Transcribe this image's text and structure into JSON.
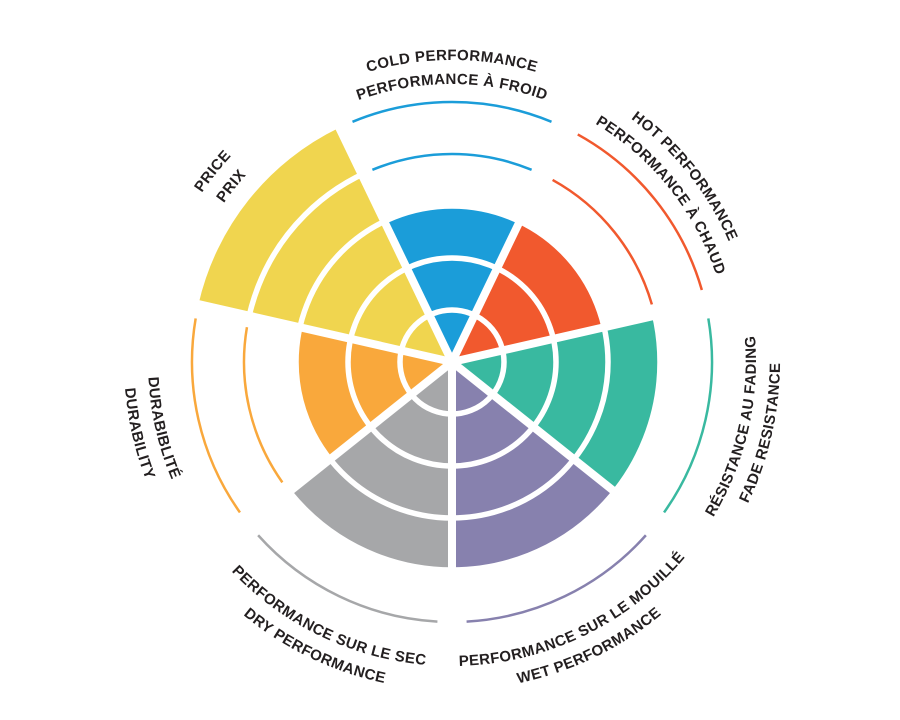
{
  "chart_data": {
    "type": "polar-sector",
    "description": "Tire performance rating wheel: 7 criteria, each rated as filled rings out of 5; unfilled ring levels shown as thin colored arcs",
    "rings": 5,
    "value_max": 5,
    "grid": "white ring dividers and white radial gaps",
    "legend_position": "labels curved around wheel, English outer line, French inner line",
    "sectors": [
      {
        "id": "cold",
        "label_en": "COLD PERFORMANCE",
        "label_fr": "PERFORMANCE À FROID",
        "value": 3,
        "color": "#1b9dd9",
        "label_dir": "cw"
      },
      {
        "id": "hot",
        "label_en": "HOT PERFORMANCE",
        "label_fr": "PERFORMANCE À CHAUD",
        "value": 3,
        "color": "#f1592e",
        "label_dir": "cw"
      },
      {
        "id": "fade",
        "label_en": "FADE RESISTANCE",
        "label_fr": "RÉSISTANCE AU FADING",
        "value": 4,
        "color": "#39b9a0",
        "label_dir": "ccw"
      },
      {
        "id": "wet",
        "label_en": "WET PERFORMANCE",
        "label_fr": "PERFORMANCE SUR LE MOUILLÉ",
        "value": 4,
        "color": "#8781ae",
        "label_dir": "ccw"
      },
      {
        "id": "dry",
        "label_en": "DRY PERFORMANCE",
        "label_fr": "PERFORMANCE SUR LE SEC",
        "value": 4,
        "color": "#a6a7a9",
        "label_dir": "ccw"
      },
      {
        "id": "durability",
        "label_en": "DURABILITY",
        "label_fr": "DURABIBLITÉ",
        "value": 3,
        "color": "#f9a83c",
        "label_dir": "ccw"
      },
      {
        "id": "price",
        "label_en": "PRICE",
        "label_fr": "PRIX",
        "value": 5,
        "color": "#f0d54f",
        "label_dir": "cw"
      }
    ],
    "colors": {
      "background": "#ffffff",
      "text": "#231f20",
      "divider": "#ffffff"
    }
  }
}
